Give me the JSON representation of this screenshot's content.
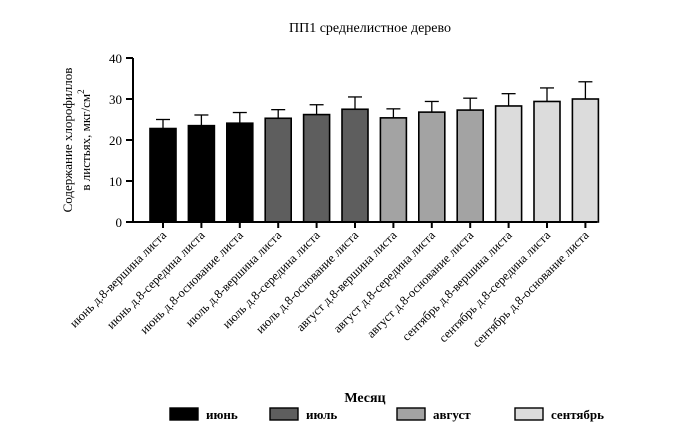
{
  "chart_data": {
    "type": "bar",
    "title": "ПП1 среднелистное дерево",
    "ylabel_line1": "Содержание хлорофиллов",
    "ylabel_line2": "в листьях, мкг/см",
    "ylabel_sup": "2",
    "xlabel": "Месяц",
    "ylim": [
      0,
      40
    ],
    "yticks": [
      0,
      10,
      20,
      30,
      40
    ],
    "categories": [
      "июнь д.8-вершина листа",
      "июнь д.8-середина листа",
      "июнь д.8-основание листа",
      "июль д.8-вершина листа",
      "июль д.8-середина листа",
      "июль д.8-основание листа",
      "август д.8-вершина листа",
      "август д.8-середина листа",
      "август д.8-основание листа",
      "сентябрь д.8-вершина листа",
      "сентябрь д.8-середина листа",
      "сентябрь д.8-основание листа"
    ],
    "values": [
      22.8,
      23.5,
      24.1,
      25.3,
      26.2,
      27.5,
      25.4,
      26.8,
      27.3,
      28.3,
      29.4,
      30.0
    ],
    "errors": [
      2.2,
      2.6,
      2.6,
      2.1,
      2.4,
      3.0,
      2.2,
      2.6,
      2.9,
      3.0,
      3.3,
      4.2
    ],
    "groups": [
      0,
      0,
      0,
      1,
      1,
      1,
      2,
      2,
      2,
      3,
      3,
      3
    ],
    "legend": [
      {
        "name": "июнь",
        "color": "#000000"
      },
      {
        "name": "июль",
        "color": "#5e5e5e"
      },
      {
        "name": "август",
        "color": "#a3a3a3"
      },
      {
        "name": "сентябрь",
        "color": "#dcdcdc"
      }
    ],
    "legend_position": "bottom",
    "grid": false
  }
}
